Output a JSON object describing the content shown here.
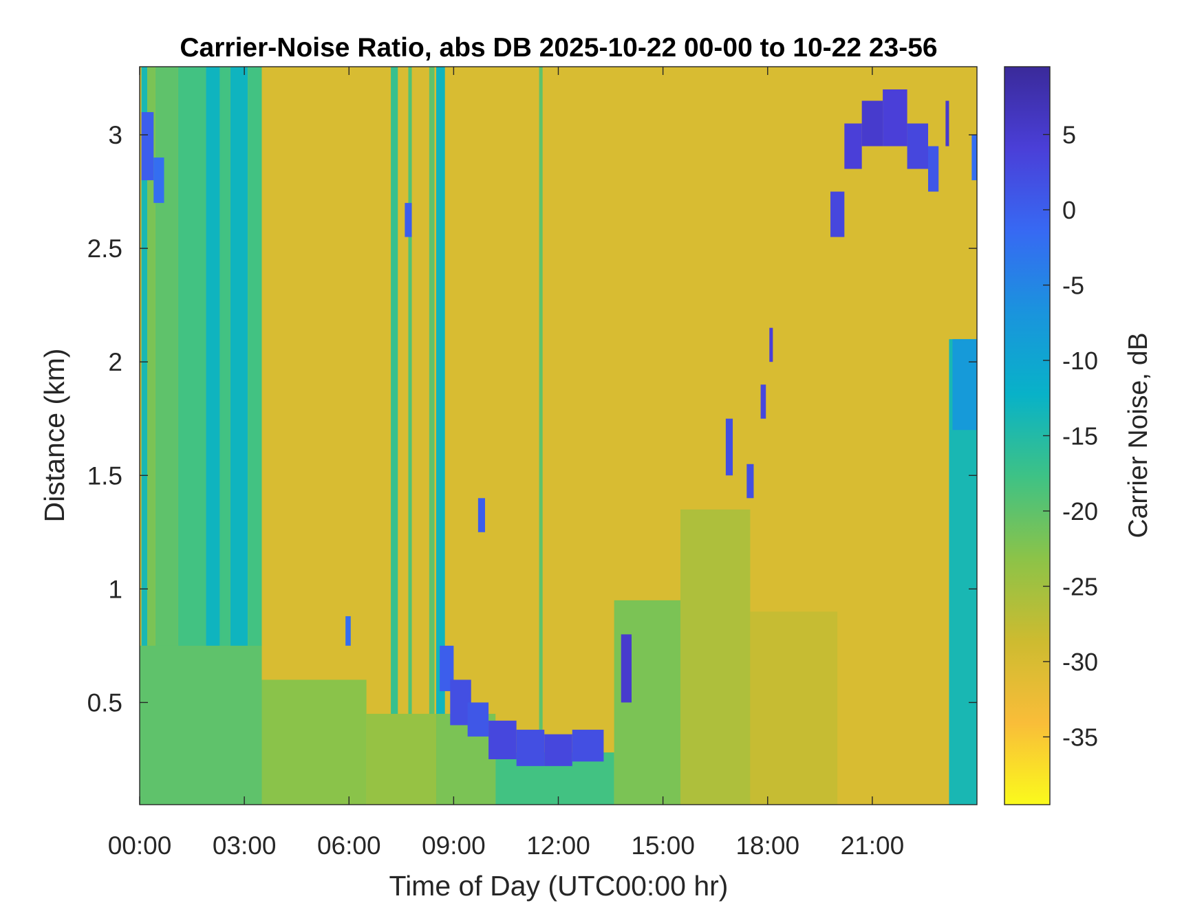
{
  "chart_data": {
    "type": "heatmap",
    "title": "Carrier-Noise Ratio, abs DB 2025-10-22 00-00 to 10-22 23-56",
    "xlabel": "Time of Day (UTC00:00 hr)",
    "ylabel": "Distance (km)",
    "xlim": [
      0,
      24
    ],
    "ylim": [
      0.05,
      3.3
    ],
    "x_ticks": [
      {
        "value": 0,
        "label": "00:00"
      },
      {
        "value": 3,
        "label": "03:00"
      },
      {
        "value": 6,
        "label": "06:00"
      },
      {
        "value": 9,
        "label": "09:00"
      },
      {
        "value": 12,
        "label": "12:00"
      },
      {
        "value": 15,
        "label": "15:00"
      },
      {
        "value": 18,
        "label": "18:00"
      },
      {
        "value": 21,
        "label": "21:00"
      }
    ],
    "y_ticks": [
      {
        "value": 0.5,
        "label": "0.5"
      },
      {
        "value": 1,
        "label": "1"
      },
      {
        "value": 1.5,
        "label": "1.5"
      },
      {
        "value": 2,
        "label": "2"
      },
      {
        "value": 2.5,
        "label": "2.5"
      },
      {
        "value": 3,
        "label": "3"
      }
    ],
    "colorbar": {
      "label": "Carrier Noise, dB",
      "range": [
        -39.5,
        9.5
      ],
      "ticks": [
        {
          "value": 5,
          "label": "5"
        },
        {
          "value": 0,
          "label": "0"
        },
        {
          "value": -5,
          "label": "-5"
        },
        {
          "value": -10,
          "label": "-10"
        },
        {
          "value": -15,
          "label": "-15"
        },
        {
          "value": -20,
          "label": "-20"
        },
        {
          "value": -25,
          "label": "-25"
        },
        {
          "value": -30,
          "label": "-30"
        },
        {
          "value": -35,
          "label": "-35"
        }
      ],
      "colormap": [
        "#fafa1c",
        "#f9bd39",
        "#cdbb30",
        "#8cc348",
        "#3ec285",
        "#08b2c8",
        "#1a94dd",
        "#3769f3",
        "#4a3fd8",
        "#3a2a9a"
      ]
    },
    "background_value": -30,
    "vertical_bands": [
      {
        "x": [
          0.05,
          0.22
        ],
        "y": [
          0.05,
          3.3
        ],
        "value": -14
      },
      {
        "x": [
          0.22,
          0.45
        ],
        "y": [
          0.05,
          3.3
        ],
        "value": -22
      },
      {
        "x": [
          0.45,
          1.1
        ],
        "y": [
          0.05,
          3.3
        ],
        "value": -20
      },
      {
        "x": [
          1.1,
          1.9
        ],
        "y": [
          0.05,
          3.3
        ],
        "value": -18
      },
      {
        "x": [
          1.9,
          2.3
        ],
        "y": [
          0.05,
          3.3
        ],
        "value": -13
      },
      {
        "x": [
          2.3,
          2.6
        ],
        "y": [
          0.05,
          3.3
        ],
        "value": -18
      },
      {
        "x": [
          2.6,
          3.1
        ],
        "y": [
          0.05,
          3.3
        ],
        "value": -13
      },
      {
        "x": [
          3.1,
          3.5
        ],
        "y": [
          0.05,
          3.3
        ],
        "value": -18
      },
      {
        "x": [
          7.2,
          7.4
        ],
        "y": [
          0.05,
          3.3
        ],
        "value": -17
      },
      {
        "x": [
          7.7,
          7.8
        ],
        "y": [
          0.05,
          3.3
        ],
        "value": -19
      },
      {
        "x": [
          8.3,
          8.45
        ],
        "y": [
          0.05,
          3.3
        ],
        "value": -20
      },
      {
        "x": [
          8.5,
          8.75
        ],
        "y": [
          0.05,
          3.3
        ],
        "value": -13
      },
      {
        "x": [
          11.45,
          11.55
        ],
        "y": [
          0.05,
          3.3
        ],
        "value": -20
      },
      {
        "x": [
          23.2,
          24
        ],
        "y": [
          0.05,
          2.1
        ],
        "value": -14
      }
    ],
    "low_layer": [
      {
        "x": [
          0,
          3.5
        ],
        "y": [
          0.05,
          0.75
        ],
        "value": -20
      },
      {
        "x": [
          3.5,
          6.5
        ],
        "y": [
          0.05,
          0.6
        ],
        "value": -23
      },
      {
        "x": [
          6.5,
          8.5
        ],
        "y": [
          0.05,
          0.45
        ],
        "value": -24
      },
      {
        "x": [
          8.5,
          10.2
        ],
        "y": [
          0.05,
          0.45
        ],
        "value": -22
      },
      {
        "x": [
          10.2,
          13.6
        ],
        "y": [
          0.05,
          0.28
        ],
        "value": -18
      },
      {
        "x": [
          13.6,
          15.5
        ],
        "y": [
          0.05,
          0.95
        ],
        "value": -22
      },
      {
        "x": [
          15.5,
          17.5
        ],
        "y": [
          0.05,
          1.35
        ],
        "value": -26
      },
      {
        "x": [
          17.5,
          20
        ],
        "y": [
          0.05,
          0.9
        ],
        "value": -28
      }
    ],
    "cloud_cells": [
      {
        "x": [
          8.6,
          9.0
        ],
        "y": [
          0.55,
          0.75
        ],
        "value": 0
      },
      {
        "x": [
          8.9,
          9.5
        ],
        "y": [
          0.4,
          0.6
        ],
        "value": 2
      },
      {
        "x": [
          9.4,
          10.0
        ],
        "y": [
          0.35,
          0.5
        ],
        "value": 1
      },
      {
        "x": [
          10.0,
          10.8
        ],
        "y": [
          0.25,
          0.42
        ],
        "value": 3
      },
      {
        "x": [
          10.8,
          11.6
        ],
        "y": [
          0.22,
          0.38
        ],
        "value": 2
      },
      {
        "x": [
          11.6,
          12.4
        ],
        "y": [
          0.22,
          0.36
        ],
        "value": 3
      },
      {
        "x": [
          12.4,
          13.3
        ],
        "y": [
          0.24,
          0.38
        ],
        "value": 2
      },
      {
        "x": [
          13.8,
          14.1
        ],
        "y": [
          0.5,
          0.8
        ],
        "value": 5
      },
      {
        "x": [
          9.7,
          9.9
        ],
        "y": [
          1.25,
          1.4
        ],
        "value": 0
      },
      {
        "x": [
          5.9,
          6.05
        ],
        "y": [
          0.75,
          0.88
        ],
        "value": -2
      },
      {
        "x": [
          7.6,
          7.8
        ],
        "y": [
          2.55,
          2.7
        ],
        "value": 0
      },
      {
        "x": [
          0.05,
          0.4
        ],
        "y": [
          2.8,
          3.1
        ],
        "value": 0
      },
      {
        "x": [
          0.4,
          0.7
        ],
        "y": [
          2.7,
          2.9
        ],
        "value": -2
      },
      {
        "x": [
          17.4,
          17.6
        ],
        "y": [
          1.4,
          1.55
        ],
        "value": 2
      },
      {
        "x": [
          17.8,
          17.95
        ],
        "y": [
          1.75,
          1.9
        ],
        "value": 3
      },
      {
        "x": [
          18.05,
          18.15
        ],
        "y": [
          2.0,
          2.15
        ],
        "value": 4
      },
      {
        "x": [
          19.8,
          20.2
        ],
        "y": [
          2.55,
          2.75
        ],
        "value": 3
      },
      {
        "x": [
          20.2,
          20.7
        ],
        "y": [
          2.85,
          3.05
        ],
        "value": 4
      },
      {
        "x": [
          20.7,
          21.3
        ],
        "y": [
          2.95,
          3.15
        ],
        "value": 5
      },
      {
        "x": [
          21.3,
          22.0
        ],
        "y": [
          2.95,
          3.2
        ],
        "value": 4
      },
      {
        "x": [
          22.0,
          22.6
        ],
        "y": [
          2.85,
          3.05
        ],
        "value": 3
      },
      {
        "x": [
          22.6,
          22.9
        ],
        "y": [
          2.75,
          2.95
        ],
        "value": 1
      },
      {
        "x": [
          23.1,
          23.2
        ],
        "y": [
          2.95,
          3.15
        ],
        "value": 5
      },
      {
        "x": [
          23.85,
          24
        ],
        "y": [
          2.8,
          3.0
        ],
        "value": -2
      },
      {
        "x": [
          23.3,
          24
        ],
        "y": [
          1.7,
          2.1
        ],
        "value": -8
      },
      {
        "x": [
          16.8,
          17.0
        ],
        "y": [
          1.5,
          1.75
        ],
        "value": 2
      }
    ]
  }
}
